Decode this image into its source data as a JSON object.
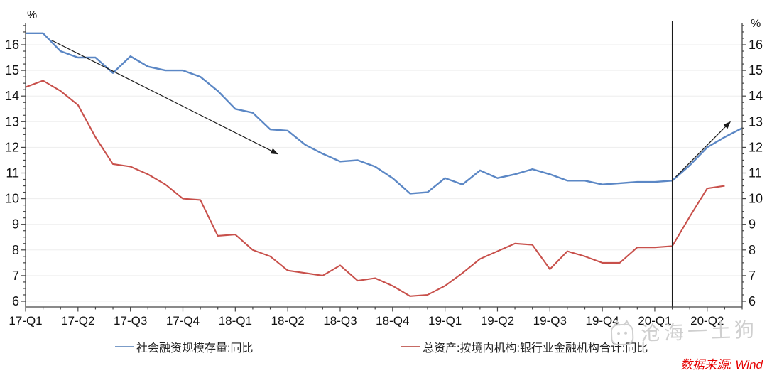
{
  "chart_data": {
    "type": "line",
    "title": "",
    "y_axis": {
      "unit": "%",
      "min": 6,
      "max": 16,
      "tick_step": 1,
      "ticks": [
        16,
        15,
        14,
        13,
        12,
        11,
        10,
        9,
        8,
        7,
        6
      ],
      "dual_axis": true,
      "grid": true
    },
    "x_axis": {
      "quarter_labels": [
        "17-Q1",
        "17-Q2",
        "17-Q3",
        "17-Q4",
        "18-Q1",
        "18-Q2",
        "18-Q3",
        "18-Q4",
        "19-Q1",
        "19-Q2",
        "19-Q3",
        "19-Q4",
        "20-Q1",
        "20-Q2"
      ],
      "months_per_label": 3,
      "start": "2017-01",
      "freq": "monthly"
    },
    "series": [
      {
        "name": "社会融资规模存量:同比",
        "color": "#5b87c5",
        "values": [
          16.45,
          16.45,
          15.75,
          15.5,
          15.5,
          14.9,
          15.55,
          15.15,
          15.0,
          15.0,
          14.75,
          14.2,
          13.5,
          13.35,
          12.7,
          12.65,
          12.1,
          11.75,
          11.45,
          11.5,
          11.25,
          10.8,
          10.2,
          10.25,
          10.8,
          10.55,
          11.1,
          10.8,
          10.95,
          11.15,
          10.95,
          10.7,
          10.7,
          10.55,
          10.6,
          10.65,
          10.65,
          10.7,
          11.3,
          12.0,
          12.4,
          12.75
        ]
      },
      {
        "name": "总资产:按境内机构:银行业金融机构合计:同比",
        "color": "#c8504b",
        "values": [
          14.35,
          14.6,
          14.2,
          13.65,
          12.4,
          11.35,
          11.25,
          10.95,
          10.55,
          10.0,
          9.95,
          8.55,
          8.6,
          8.0,
          7.75,
          7.2,
          7.1,
          7.0,
          7.4,
          6.8,
          6.9,
          6.6,
          6.2,
          6.25,
          6.6,
          7.1,
          7.65,
          7.95,
          8.25,
          8.2,
          7.25,
          7.95,
          7.75,
          7.5,
          7.5,
          8.1,
          8.1,
          8.15,
          9.3,
          10.4,
          10.5
        ]
      }
    ],
    "annotations": {
      "vertical_line_index": 37,
      "arrows": [
        {
          "direction": "down",
          "from_index": 1.5,
          "from_value": 16.17,
          "to_index": 14.4,
          "to_value": 11.75
        },
        {
          "direction": "up",
          "from_index": 37.2,
          "from_value": 10.85,
          "to_index": 40.3,
          "to_value": 12.98
        }
      ]
    },
    "legend_position": "bottom",
    "annotation_color": "#1a1a1a"
  },
  "watermark": {
    "text": "沧海一土狗"
  },
  "source": {
    "text": "数据来源: Wind"
  }
}
